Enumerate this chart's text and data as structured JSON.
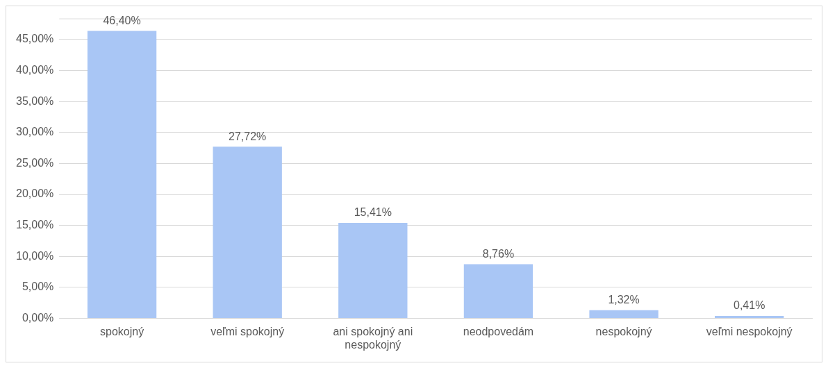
{
  "chart_data": {
    "type": "bar",
    "categories": [
      "spokojný",
      "veľmi spokojný",
      "ani spokojný ani nespokojný",
      "neodpovedám",
      "nespokojný",
      "veľmi nespokojný"
    ],
    "values": [
      46.4,
      27.72,
      15.41,
      8.76,
      1.32,
      0.41
    ],
    "value_labels": [
      "46,40%",
      "27,72%",
      "15,41%",
      "8,76%",
      "1,32%",
      "0,41%"
    ],
    "color": "#a9c6f5",
    "ylim": [
      0,
      48.4
    ],
    "yticks": [
      {
        "value": 0,
        "label": "0,00%"
      },
      {
        "value": 5,
        "label": "5,00%"
      },
      {
        "value": 10,
        "label": "10,00%"
      },
      {
        "value": 15,
        "label": "15,00%"
      },
      {
        "value": 20,
        "label": "20,00%"
      },
      {
        "value": 25,
        "label": "25,00%"
      },
      {
        "value": 30,
        "label": "30,00%"
      },
      {
        "value": 35,
        "label": "35,00%"
      },
      {
        "value": 40,
        "label": "40,00%"
      },
      {
        "value": 45,
        "label": "45,00%"
      }
    ],
    "grid": "y"
  }
}
